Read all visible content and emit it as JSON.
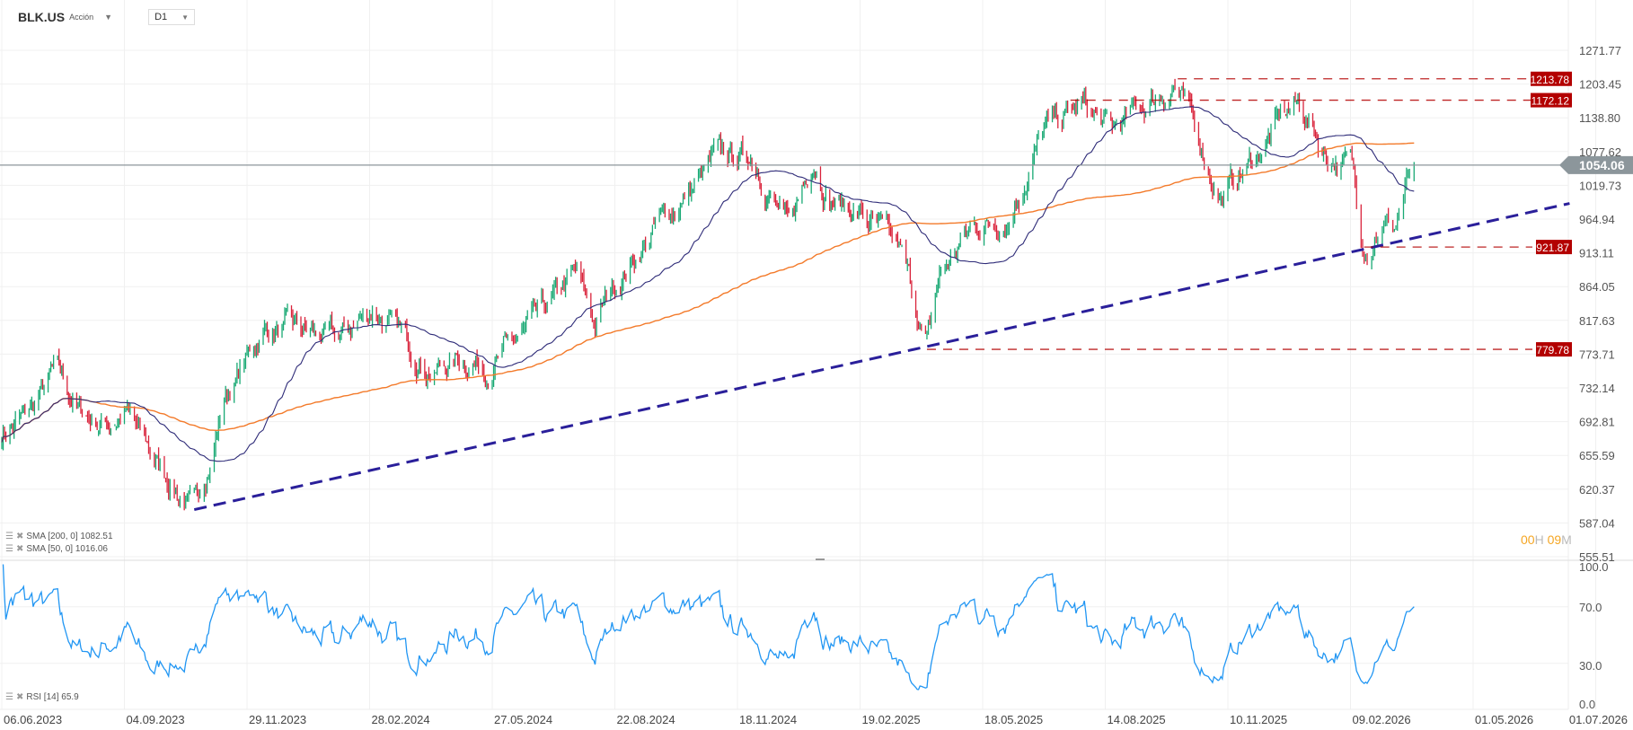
{
  "header": {
    "symbol": "BLK.US",
    "instrument_type": "Acción",
    "timeframe": "D1"
  },
  "countdown": {
    "hours": "00",
    "h": "H",
    "minutes": "09",
    "m": "M"
  },
  "indicators": {
    "sma200": {
      "label": "SMA [200, 0] 1082.51",
      "color": "#f37a2a"
    },
    "sma50": {
      "label": "SMA [50, 0] 1016.06",
      "color": "#2e2b78"
    },
    "rsi": {
      "label": "RSI [14] 65.9",
      "color": "#2196f3"
    }
  },
  "colors": {
    "up": "#19a974",
    "down": "#d9233b",
    "level": "#b30000",
    "trendline": "#2a1f9a",
    "current": "#8c969b"
  },
  "chart_data": {
    "type": "ohlc",
    "y_scale": "log",
    "price_ticks": [
      "1271.77",
      "1203.45",
      "1138.80",
      "1077.62",
      "1019.73",
      "964.94",
      "913.11",
      "864.05",
      "817.63",
      "773.71",
      "732.14",
      "692.81",
      "655.59",
      "620.37",
      "587.04",
      "555.51"
    ],
    "rsi_ticks": [
      "100.0",
      "70.0",
      "30.0",
      "0.0"
    ],
    "x_ticks": [
      "06.06.2023",
      "04.09.2023",
      "29.11.2023",
      "28.02.2024",
      "27.05.2024",
      "22.08.2024",
      "18.11.2024",
      "19.02.2025",
      "18.05.2025",
      "14.08.2025",
      "10.11.2025",
      "09.02.2026",
      "01.05.2026",
      "01.07.2026"
    ],
    "current_price": "1054.06",
    "levels": [
      {
        "value": "1213.78",
        "from": "2025-10-05"
      },
      {
        "value": "1172.12",
        "from": "2025-07-20"
      },
      {
        "value": "921.87",
        "from": "2026-02-18"
      },
      {
        "value": "779.78",
        "from": "2025-04-08"
      }
    ],
    "trendline": [
      [
        "2023-10-23",
        600
      ],
      [
        "2026-06-18",
        990
      ]
    ],
    "close_keypoints": [
      [
        "2023-06-06",
        680
      ],
      [
        "2023-06-25",
        700
      ],
      [
        "2023-07-15",
        752
      ],
      [
        "2023-08-01",
        705
      ],
      [
        "2023-08-20",
        690
      ],
      [
        "2023-09-05",
        705
      ],
      [
        "2023-09-25",
        650
      ],
      [
        "2023-10-23",
        598
      ],
      [
        "2023-11-03",
        650
      ],
      [
        "2023-11-13",
        720
      ],
      [
        "2023-12-12",
        808
      ],
      [
        "2024-01-10",
        800
      ],
      [
        "2024-02-05",
        790
      ],
      [
        "2024-03-01",
        835
      ],
      [
        "2024-03-20",
        800
      ],
      [
        "2024-04-15",
        752
      ],
      [
        "2024-05-05",
        770
      ],
      [
        "2024-05-25",
        760
      ],
      [
        "2024-07-01",
        820
      ],
      [
        "2024-07-25",
        880
      ],
      [
        "2024-08-08",
        810
      ],
      [
        "2024-08-22",
        870
      ],
      [
        "2024-09-20",
        950
      ],
      [
        "2024-10-15",
        1010
      ],
      [
        "2024-11-01",
        1060
      ],
      [
        "2024-11-30",
        1070
      ],
      [
        "2024-12-27",
        945
      ],
      [
        "2025-01-15",
        1075
      ],
      [
        "2025-01-27",
        1000
      ],
      [
        "2025-02-19",
        975
      ],
      [
        "2025-03-20",
        910
      ],
      [
        "2025-04-08",
        785
      ],
      [
        "2025-04-17",
        880
      ],
      [
        "2025-05-10",
        950
      ],
      [
        "2025-06-05",
        970
      ],
      [
        "2025-07-01",
        1115
      ],
      [
        "2025-07-30",
        1160
      ],
      [
        "2025-08-18",
        1110
      ],
      [
        "2025-09-15",
        1170
      ],
      [
        "2025-10-03",
        1205
      ],
      [
        "2025-10-22",
        1085
      ],
      [
        "2025-11-05",
        1000
      ],
      [
        "2025-11-28",
        1060
      ],
      [
        "2025-12-20",
        1140
      ],
      [
        "2026-01-02",
        1165
      ],
      [
        "2026-01-20",
        1080
      ],
      [
        "2026-02-10",
        1050
      ],
      [
        "2026-02-16",
        942
      ],
      [
        "2026-02-20",
        925
      ],
      [
        "2026-03-01",
        970
      ],
      [
        "2026-03-10",
        950
      ],
      [
        "2026-03-16",
        1005
      ],
      [
        "2026-03-23",
        1054
      ]
    ]
  }
}
